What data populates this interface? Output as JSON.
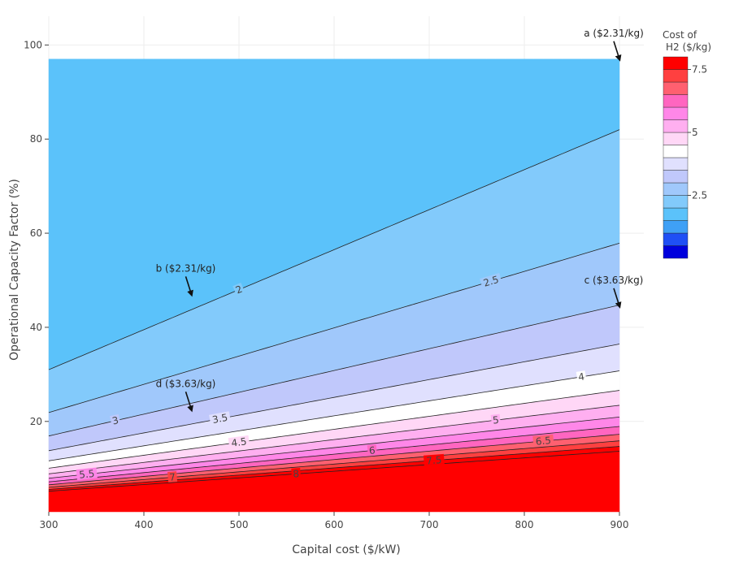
{
  "chart_data": {
    "type": "contour",
    "xlabel": "Capital cost ($/kW)",
    "ylabel": "Operational Capacity Factor (%)",
    "xlim": [
      300,
      900
    ],
    "ylim": [
      0.8,
      103
    ],
    "data_y_range": [
      0.8,
      97
    ],
    "x_ticks": [
      300,
      400,
      500,
      600,
      700,
      800,
      900
    ],
    "y_ticks": [
      20,
      40,
      60,
      80,
      100
    ],
    "grid": true,
    "colorbar": {
      "title_line1": "Cost of",
      "title_line2": "H2 ($/kg)",
      "ticks": [
        "2.5",
        "5",
        "7.5"
      ],
      "range": [
        0,
        8
      ],
      "colors": [
        "#0000dd",
        "#1f4ff5",
        "#3fa0f5",
        "#5bc2fa",
        "#82cafb",
        "#a0c8fb",
        "#c0c8fb",
        "#e0e0fe",
        "#ffffff",
        "#ffd7f6",
        "#ffaff0",
        "#ff87e8",
        "#ff66c0",
        "#ff6070",
        "#ff4040",
        "#ff0000"
      ]
    },
    "contours": {
      "levels": [
        2,
        2.5,
        3,
        3.5,
        4,
        4.5,
        5,
        5.5,
        6,
        6.5,
        7,
        7.5,
        8
      ],
      "labeled": [
        "2",
        "2.5",
        "3",
        "3.5",
        "4",
        "4.5",
        "5",
        "5.5",
        "6",
        "6.5",
        "7",
        "7.5",
        "8"
      ]
    },
    "annotations": [
      {
        "text": "a ($2.31/kg)",
        "x": 900,
        "y": 97
      },
      {
        "text": "b ($2.31/kg)",
        "x": 450,
        "y": 47
      },
      {
        "text": "c ($3.63/kg)",
        "x": 900,
        "y": 44.5
      },
      {
        "text": "d ($3.63/kg)",
        "x": 450,
        "y": 22.5
      }
    ]
  }
}
